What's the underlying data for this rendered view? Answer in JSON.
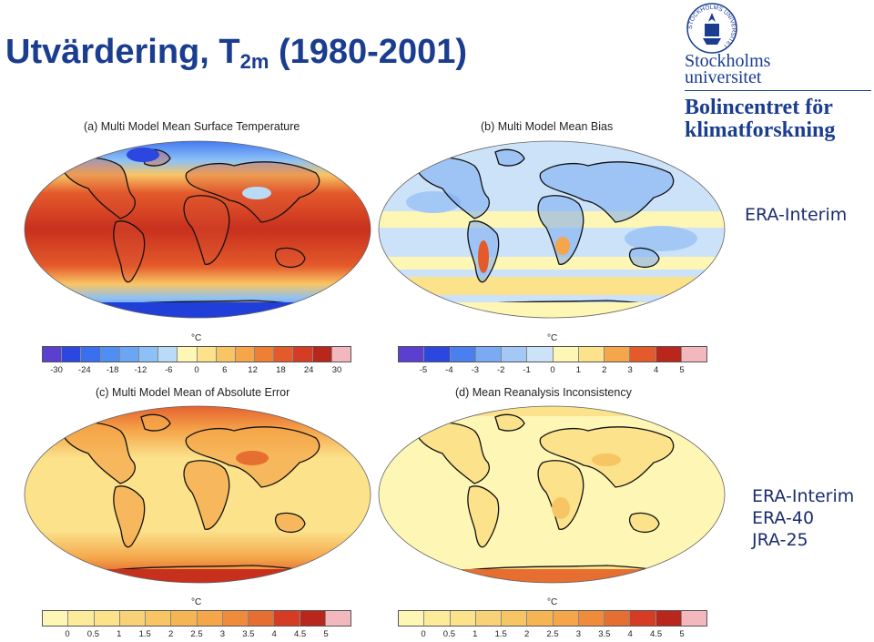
{
  "slide": {
    "title_main": "Utvärdering, T",
    "title_sub": "2m",
    "title_period": " (1980-2001)"
  },
  "logo": {
    "seal_text": "STOCKHOLMS UNIVERSITET",
    "university_line1": "Stockholms",
    "university_line2": "universitet",
    "dept_line1": "Bolincentret för",
    "dept_line2": "klimatforskning",
    "color": "#1a3d8f"
  },
  "panels": {
    "a": {
      "title": "(a) Multi Model Mean Surface Temperature"
    },
    "b": {
      "title": "(b) Multi Model Mean Bias"
    },
    "c": {
      "title": "(c) Multi Model Mean of Absolute Error"
    },
    "d": {
      "title": "(d) Mean Reanalysis Inconsistency"
    }
  },
  "colorbars": {
    "unit": "°C",
    "temperature": {
      "ticks": [
        "-30",
        "-24",
        "-18",
        "-12",
        "-6",
        "0",
        "6",
        "12",
        "18",
        "24",
        "30"
      ],
      "colors": [
        "#5b3fd0",
        "#2c47e0",
        "#3a6ff0",
        "#4f8ef2",
        "#6aa6f5",
        "#8cc1f7",
        "#b9dbf8",
        "#fdf6b4",
        "#fbe28b",
        "#f8c565",
        "#f5a64a",
        "#ee7f35",
        "#e45a2b",
        "#d63c23",
        "#b8261c",
        "#f2b8bd"
      ]
    },
    "bias": {
      "ticks": [
        "-5",
        "-4",
        "-3",
        "-2",
        "-1",
        "0",
        "1",
        "2",
        "3",
        "4",
        "5"
      ],
      "colors": [
        "#5b3fd0",
        "#2c47e0",
        "#4a7ff0",
        "#7aaaf3",
        "#a3c8f6",
        "#cbe2f8",
        "#fdf6b4",
        "#fbe28b",
        "#f5a64a",
        "#e45a2b",
        "#b8261c",
        "#f2b8bd"
      ]
    },
    "error": {
      "ticks": [
        "0",
        "0.5",
        "1",
        "1.5",
        "2",
        "2.5",
        "3",
        "3.5",
        "4",
        "4.5",
        "5"
      ],
      "colors": [
        "#fdf6b4",
        "#fbeb9a",
        "#fbe28b",
        "#f9d277",
        "#f8c565",
        "#f6b555",
        "#f5a64a",
        "#ee8c3b",
        "#e66e30",
        "#d63c23",
        "#b8261c",
        "#f2b8bd"
      ]
    }
  },
  "notes": {
    "bias_reference": "ERA-Interim",
    "reanalyses": [
      "ERA-Interim",
      "ERA-40",
      "JRA-25"
    ]
  }
}
